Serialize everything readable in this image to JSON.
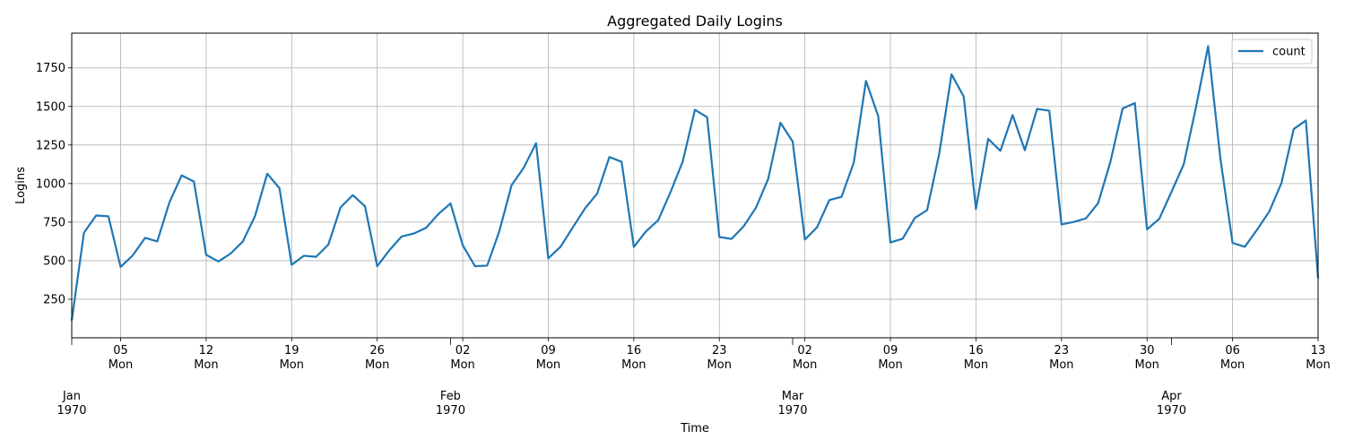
{
  "chart_data": {
    "type": "line",
    "title": "Aggregated Daily Logins",
    "xlabel": "Time",
    "ylabel": "Logins",
    "grid": true,
    "legend_position": "upper-right",
    "ylim": [
      0,
      1975
    ],
    "y_ticks": [
      250,
      500,
      750,
      1000,
      1250,
      1500,
      1750
    ],
    "x_start": "1970-01-01",
    "x_end": "1970-04-13",
    "minor_ticks": [
      {
        "date": "1970-01-05",
        "day": "05",
        "weekday": "Mon"
      },
      {
        "date": "1970-01-12",
        "day": "12",
        "weekday": "Mon"
      },
      {
        "date": "1970-01-19",
        "day": "19",
        "weekday": "Mon"
      },
      {
        "date": "1970-01-26",
        "day": "26",
        "weekday": "Mon"
      },
      {
        "date": "1970-02-02",
        "day": "02",
        "weekday": "Mon"
      },
      {
        "date": "1970-02-09",
        "day": "09",
        "weekday": "Mon"
      },
      {
        "date": "1970-02-16",
        "day": "16",
        "weekday": "Mon"
      },
      {
        "date": "1970-02-23",
        "day": "23",
        "weekday": "Mon"
      },
      {
        "date": "1970-03-02",
        "day": "02",
        "weekday": "Mon"
      },
      {
        "date": "1970-03-09",
        "day": "09",
        "weekday": "Mon"
      },
      {
        "date": "1970-03-16",
        "day": "16",
        "weekday": "Mon"
      },
      {
        "date": "1970-03-23",
        "day": "23",
        "weekday": "Mon"
      },
      {
        "date": "1970-03-30",
        "day": "30",
        "weekday": "Mon"
      },
      {
        "date": "1970-04-06",
        "day": "06",
        "weekday": "Mon"
      },
      {
        "date": "1970-04-13",
        "day": "13",
        "weekday": "Mon"
      }
    ],
    "major_ticks": [
      {
        "date": "1970-01-01",
        "month": "Jan",
        "year": "1970"
      },
      {
        "date": "1970-02-01",
        "month": "Feb",
        "year": "1970"
      },
      {
        "date": "1970-03-01",
        "month": "Mar",
        "year": "1970"
      },
      {
        "date": "1970-04-01",
        "month": "Apr",
        "year": "1970"
      }
    ],
    "series": [
      {
        "name": "count",
        "color": "#1f77b4",
        "values": [
          112,
          681,
          793,
          788,
          459,
          535,
          648,
          625,
          879,
          1053,
          1013,
          538,
          495,
          546,
          624,
          789,
          1064,
          970,
          473,
          532,
          525,
          604,
          845,
          925,
          853,
          464,
          568,
          657,
          676,
          713,
          802,
          871,
          600,
          464,
          468,
          693,
          990,
          1104,
          1262,
          515,
          590,
          715,
          838,
          935,
          1172,
          1141,
          589,
          690,
          763,
          944,
          1142,
          1478,
          1430,
          653,
          641,
          724,
          844,
          1031,
          1394,
          1272,
          637,
          717,
          893,
          914,
          1136,
          1666,
          1437,
          618,
          642,
          777,
          827,
          1196,
          1708,
          1564,
          836,
          1290,
          1212,
          1444,
          1216,
          1484,
          1472,
          735,
          751,
          774,
          873,
          1140,
          1486,
          1522,
          703,
          771,
          946,
          1124,
          1493,
          1890,
          1163,
          615,
          590,
          700,
          818,
          1003,
          1353,
          1409,
          386
        ]
      }
    ]
  }
}
